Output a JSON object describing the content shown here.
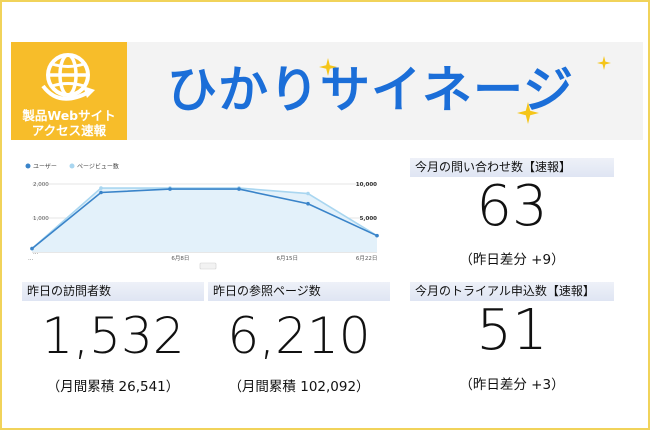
{
  "header": {
    "logo_line1": "製品Webサイト",
    "logo_line2": "アクセス速報",
    "brand": "ひかりサイネージ",
    "icons": [
      "globe-icon",
      "sparkle-icon"
    ],
    "colors": {
      "logo_bg": "#f7bd2a",
      "brand": "#1b6ed8",
      "sparkle": "#f5c518"
    }
  },
  "chart_data": {
    "type": "line",
    "legend_position": "top-left",
    "series": [
      {
        "name": "ユーザー",
        "color": "#3a84c9",
        "values": [
          100,
          1750,
          1850,
          1850,
          1420,
          480
        ]
      },
      {
        "name": "ページビュー数",
        "color": "#a9d6f0",
        "values": [
          100,
          1880,
          1880,
          1880,
          1720,
          480
        ]
      }
    ],
    "x": [
      0,
      1,
      2,
      3,
      4,
      5
    ],
    "x_tick_labels": [
      "...",
      "6月8日",
      "6月15日",
      "6月22日"
    ],
    "y_left_ticks": [
      "2,000",
      "1,000",
      "..."
    ],
    "y_right_ticks": [
      "10,000",
      "5,000"
    ],
    "y_left_range": [
      0,
      2000
    ],
    "grid": true
  },
  "stats": {
    "inquiries": {
      "label": "今月の問い合わせ数【速報】",
      "value": "63",
      "delta": "（昨日差分 +9）"
    },
    "visitors": {
      "label": "昨日の訪問者数",
      "value": "1,532",
      "note": "（月間累積 26,541）"
    },
    "pageviews": {
      "label": "昨日の参照ページ数",
      "value": "6,210",
      "note": "（月間累積 102,092）"
    },
    "trials": {
      "label": "今月のトライアル申込数【速報】",
      "value": "51",
      "delta": "（昨日差分 +3）"
    }
  }
}
